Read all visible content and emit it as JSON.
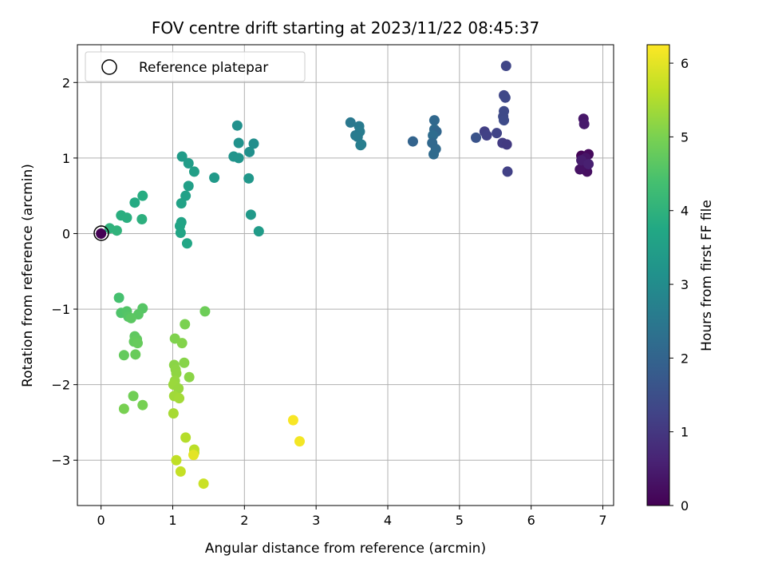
{
  "chart_data": {
    "type": "scatter",
    "title": "FOV centre drift starting at 2023/11/22 08:45:37",
    "xlabel": "Angular distance from reference (arcmin)",
    "ylabel": "Rotation from reference (arcmin)",
    "xlim": [
      -0.33,
      7.15
    ],
    "ylim": [
      -3.6,
      2.5
    ],
    "x_ticks": [
      0,
      1,
      2,
      3,
      4,
      5,
      6,
      7
    ],
    "y_ticks": [
      -3,
      -2,
      -1,
      0,
      1,
      2
    ],
    "grid": true,
    "legend": {
      "placement": "top-left",
      "entries": [
        "Reference platepar"
      ]
    },
    "reference_point": {
      "x": 0,
      "y": 0
    },
    "colorbar": {
      "label": "Hours from first FF file",
      "range": [
        0,
        6.25
      ],
      "ticks": [
        0,
        1,
        2,
        3,
        4,
        5,
        6
      ],
      "colormap": "viridis"
    },
    "points": [
      {
        "x": 6.7,
        "y": 1.03,
        "t": 0.05
      },
      {
        "x": 6.75,
        "y": 0.95,
        "t": 0.1
      },
      {
        "x": 6.8,
        "y": 1.05,
        "t": 0.15
      },
      {
        "x": 6.72,
        "y": 0.88,
        "t": 0.2
      },
      {
        "x": 6.78,
        "y": 0.82,
        "t": 0.25
      },
      {
        "x": 6.68,
        "y": 0.85,
        "t": 0.3
      },
      {
        "x": 6.76,
        "y": 1.0,
        "t": 0.35
      },
      {
        "x": 6.73,
        "y": 1.52,
        "t": 0.4
      },
      {
        "x": 6.74,
        "y": 1.45,
        "t": 0.45
      },
      {
        "x": 6.7,
        "y": 0.97,
        "t": 0.5
      },
      {
        "x": 6.8,
        "y": 0.92,
        "t": 0.55
      },
      {
        "x": 5.65,
        "y": 2.22,
        "t": 1.3
      },
      {
        "x": 5.62,
        "y": 1.83,
        "t": 1.32
      },
      {
        "x": 5.64,
        "y": 1.8,
        "t": 1.35
      },
      {
        "x": 5.62,
        "y": 1.62,
        "t": 1.38
      },
      {
        "x": 5.61,
        "y": 1.55,
        "t": 1.4
      },
      {
        "x": 5.62,
        "y": 1.5,
        "t": 1.42
      },
      {
        "x": 5.35,
        "y": 1.35,
        "t": 1.15
      },
      {
        "x": 5.38,
        "y": 1.3,
        "t": 1.2
      },
      {
        "x": 5.52,
        "y": 1.33,
        "t": 1.25
      },
      {
        "x": 5.23,
        "y": 1.27,
        "t": 1.6
      },
      {
        "x": 5.6,
        "y": 1.2,
        "t": 1.1
      },
      {
        "x": 5.66,
        "y": 1.18,
        "t": 1.05
      },
      {
        "x": 5.67,
        "y": 0.82,
        "t": 1.2
      },
      {
        "x": 4.65,
        "y": 1.5,
        "t": 2.1
      },
      {
        "x": 4.65,
        "y": 1.38,
        "t": 2.15
      },
      {
        "x": 4.68,
        "y": 1.35,
        "t": 2.05
      },
      {
        "x": 4.63,
        "y": 1.3,
        "t": 2.2
      },
      {
        "x": 4.35,
        "y": 1.22,
        "t": 2.0
      },
      {
        "x": 4.62,
        "y": 1.2,
        "t": 2.1
      },
      {
        "x": 4.67,
        "y": 1.12,
        "t": 2.12
      },
      {
        "x": 4.64,
        "y": 1.05,
        "t": 2.18
      },
      {
        "x": 3.48,
        "y": 1.47,
        "t": 2.5
      },
      {
        "x": 3.6,
        "y": 1.42,
        "t": 2.55
      },
      {
        "x": 3.61,
        "y": 1.35,
        "t": 2.6
      },
      {
        "x": 3.55,
        "y": 1.3,
        "t": 2.52
      },
      {
        "x": 3.58,
        "y": 1.28,
        "t": 2.58
      },
      {
        "x": 3.63,
        "y": 1.18,
        "t": 2.62
      },
      {
        "x": 3.62,
        "y": 1.17,
        "t": 2.65
      },
      {
        "x": 1.9,
        "y": 1.43,
        "t": 3.1
      },
      {
        "x": 1.92,
        "y": 1.2,
        "t": 3.15
      },
      {
        "x": 2.13,
        "y": 1.19,
        "t": 3.05
      },
      {
        "x": 2.07,
        "y": 1.08,
        "t": 3.1
      },
      {
        "x": 1.85,
        "y": 1.02,
        "t": 3.2
      },
      {
        "x": 1.92,
        "y": 1.0,
        "t": 3.22
      },
      {
        "x": 2.06,
        "y": 0.73,
        "t": 3.3
      },
      {
        "x": 2.09,
        "y": 0.25,
        "t": 3.35
      },
      {
        "x": 2.2,
        "y": 0.03,
        "t": 3.4
      },
      {
        "x": 1.13,
        "y": 1.02,
        "t": 3.4
      },
      {
        "x": 1.22,
        "y": 0.93,
        "t": 3.45
      },
      {
        "x": 1.3,
        "y": 0.82,
        "t": 3.5
      },
      {
        "x": 1.58,
        "y": 0.74,
        "t": 3.35
      },
      {
        "x": 1.22,
        "y": 0.63,
        "t": 3.5
      },
      {
        "x": 1.18,
        "y": 0.5,
        "t": 3.55
      },
      {
        "x": 1.12,
        "y": 0.4,
        "t": 3.6
      },
      {
        "x": 1.12,
        "y": 0.15,
        "t": 3.62
      },
      {
        "x": 1.1,
        "y": 0.1,
        "t": 3.65
      },
      {
        "x": 1.11,
        "y": 0.01,
        "t": 3.68
      },
      {
        "x": 1.2,
        "y": -0.13,
        "t": 3.7
      },
      {
        "x": 0.58,
        "y": 0.5,
        "t": 3.85
      },
      {
        "x": 0.47,
        "y": 0.41,
        "t": 3.8
      },
      {
        "x": 0.28,
        "y": 0.24,
        "t": 3.9
      },
      {
        "x": 0.36,
        "y": 0.21,
        "t": 3.92
      },
      {
        "x": 0.57,
        "y": 0.19,
        "t": 3.95
      },
      {
        "x": 0.12,
        "y": 0.07,
        "t": 4.0
      },
      {
        "x": 0.22,
        "y": 0.04,
        "t": 4.02
      },
      {
        "x": 0.25,
        "y": -0.85,
        "t": 4.4
      },
      {
        "x": 0.28,
        "y": -1.05,
        "t": 4.5
      },
      {
        "x": 0.36,
        "y": -1.03,
        "t": 4.55
      },
      {
        "x": 0.58,
        "y": -0.99,
        "t": 4.6
      },
      {
        "x": 0.52,
        "y": -1.07,
        "t": 4.62
      },
      {
        "x": 0.38,
        "y": -1.1,
        "t": 4.58
      },
      {
        "x": 0.42,
        "y": -1.12,
        "t": 4.65
      },
      {
        "x": 1.45,
        "y": -1.03,
        "t": 4.85
      },
      {
        "x": 0.47,
        "y": -1.36,
        "t": 4.7
      },
      {
        "x": 0.5,
        "y": -1.4,
        "t": 4.72
      },
      {
        "x": 0.46,
        "y": -1.43,
        "t": 4.75
      },
      {
        "x": 0.51,
        "y": -1.45,
        "t": 4.78
      },
      {
        "x": 0.32,
        "y": -1.61,
        "t": 4.75
      },
      {
        "x": 0.48,
        "y": -1.6,
        "t": 4.8
      },
      {
        "x": 0.45,
        "y": -2.15,
        "t": 4.9
      },
      {
        "x": 0.58,
        "y": -2.27,
        "t": 4.95
      },
      {
        "x": 0.32,
        "y": -2.32,
        "t": 4.98
      },
      {
        "x": 1.17,
        "y": -1.2,
        "t": 5.0
      },
      {
        "x": 1.03,
        "y": -1.39,
        "t": 5.05
      },
      {
        "x": 1.13,
        "y": -1.45,
        "t": 5.08
      },
      {
        "x": 1.16,
        "y": -1.71,
        "t": 5.12
      },
      {
        "x": 1.02,
        "y": -1.74,
        "t": 5.15
      },
      {
        "x": 1.04,
        "y": -1.8,
        "t": 5.18
      },
      {
        "x": 1.05,
        "y": -1.85,
        "t": 5.2
      },
      {
        "x": 1.23,
        "y": -1.9,
        "t": 5.15
      },
      {
        "x": 1.03,
        "y": -1.95,
        "t": 5.25
      },
      {
        "x": 1.01,
        "y": -2.0,
        "t": 5.3
      },
      {
        "x": 1.08,
        "y": -2.05,
        "t": 5.28
      },
      {
        "x": 1.02,
        "y": -2.15,
        "t": 5.35
      },
      {
        "x": 1.09,
        "y": -2.18,
        "t": 5.38
      },
      {
        "x": 1.01,
        "y": -2.38,
        "t": 5.42
      },
      {
        "x": 1.18,
        "y": -2.7,
        "t": 5.55
      },
      {
        "x": 1.3,
        "y": -2.86,
        "t": 5.6
      },
      {
        "x": 1.3,
        "y": -2.9,
        "t": 5.62
      },
      {
        "x": 1.05,
        "y": -3.0,
        "t": 5.65
      },
      {
        "x": 1.11,
        "y": -3.15,
        "t": 5.7
      },
      {
        "x": 1.43,
        "y": -3.31,
        "t": 5.75
      },
      {
        "x": 1.29,
        "y": -2.93,
        "t": 6.0
      },
      {
        "x": 2.68,
        "y": -2.47,
        "t": 6.2
      },
      {
        "x": 2.77,
        "y": -2.75,
        "t": 6.15
      },
      {
        "x": 0,
        "y": 0,
        "t": 0.0
      }
    ]
  }
}
